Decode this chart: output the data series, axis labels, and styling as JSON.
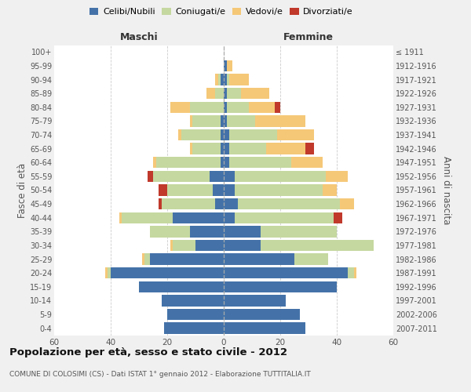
{
  "age_groups": [
    "0-4",
    "5-9",
    "10-14",
    "15-19",
    "20-24",
    "25-29",
    "30-34",
    "35-39",
    "40-44",
    "45-49",
    "50-54",
    "55-59",
    "60-64",
    "65-69",
    "70-74",
    "75-79",
    "80-84",
    "85-89",
    "90-94",
    "95-99",
    "100+"
  ],
  "birth_years": [
    "2007-2011",
    "2002-2006",
    "1997-2001",
    "1992-1996",
    "1987-1991",
    "1982-1986",
    "1977-1981",
    "1972-1976",
    "1967-1971",
    "1962-1966",
    "1957-1961",
    "1952-1956",
    "1947-1951",
    "1942-1946",
    "1937-1941",
    "1932-1936",
    "1927-1931",
    "1922-1926",
    "1917-1921",
    "1912-1916",
    "≤ 1911"
  ],
  "male": {
    "celibi": [
      21,
      20,
      22,
      30,
      40,
      26,
      10,
      12,
      18,
      3,
      4,
      5,
      1,
      1,
      1,
      1,
      0,
      0,
      1,
      0,
      0
    ],
    "coniugati": [
      0,
      0,
      0,
      0,
      1,
      2,
      8,
      14,
      18,
      19,
      16,
      20,
      23,
      10,
      14,
      10,
      12,
      3,
      1,
      0,
      0
    ],
    "vedovi": [
      0,
      0,
      0,
      0,
      1,
      1,
      1,
      0,
      1,
      0,
      0,
      0,
      1,
      1,
      1,
      1,
      7,
      3,
      1,
      0,
      0
    ],
    "divorziati": [
      0,
      0,
      0,
      0,
      0,
      0,
      0,
      0,
      0,
      1,
      3,
      2,
      0,
      0,
      0,
      0,
      0,
      0,
      0,
      0,
      0
    ]
  },
  "female": {
    "nubili": [
      29,
      27,
      22,
      40,
      44,
      25,
      13,
      13,
      4,
      5,
      4,
      4,
      2,
      2,
      2,
      1,
      1,
      1,
      1,
      1,
      0
    ],
    "coniugate": [
      0,
      0,
      0,
      0,
      2,
      12,
      40,
      27,
      35,
      36,
      31,
      32,
      22,
      13,
      17,
      10,
      8,
      5,
      1,
      0,
      0
    ],
    "vedove": [
      0,
      0,
      0,
      0,
      1,
      0,
      0,
      0,
      0,
      5,
      5,
      8,
      11,
      14,
      13,
      18,
      9,
      10,
      7,
      2,
      0
    ],
    "divorziate": [
      0,
      0,
      0,
      0,
      0,
      0,
      0,
      0,
      3,
      0,
      0,
      0,
      0,
      3,
      0,
      0,
      2,
      0,
      0,
      0,
      0
    ]
  },
  "colors": {
    "celibi": "#4472a8",
    "coniugati": "#c5d8a0",
    "vedovi": "#f5c878",
    "divorziati": "#c0392b"
  },
  "xlim": 60,
  "title": "Popolazione per età, sesso e stato civile - 2012",
  "subtitle": "COMUNE DI COLOSIMI (CS) - Dati ISTAT 1° gennaio 2012 - Elaborazione TUTTITALIA.IT",
  "ylabel_left": "Fasce di età",
  "ylabel_right": "Anni di nascita",
  "xlabel_male": "Maschi",
  "xlabel_female": "Femmine",
  "bg_color": "#f0f0f0",
  "plot_bg": "#ffffff"
}
